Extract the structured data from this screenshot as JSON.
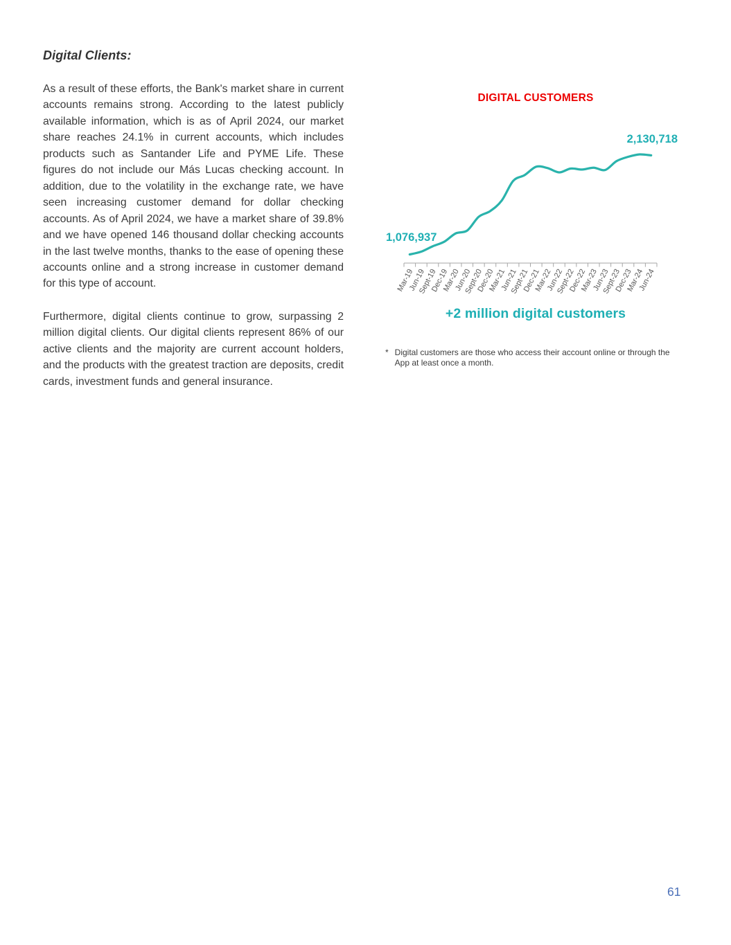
{
  "article": {
    "heading": "Digital Clients:",
    "paragraphs": [
      "As a result of these efforts, the Bank's market share in current accounts remains strong. According to the latest publicly available information, which is as of April 2024, our market share reaches 24.1% in current accounts, which includes products such as Santander Life and PYME Life. These figures do not include our Más Lucas checking account. In addition, due to the volatility in the exchange rate, we have seen increasing customer demand for dollar checking accounts. As of April 2024, we have a market share of 39.8% and we have opened 146 thousand dollar checking accounts in the last twelve months, thanks to the ease of opening these accounts online and a strong increase in customer demand for this type of account.",
      "Furthermore, digital clients continue to grow, surpassing 2 million digital clients. Our digital clients represent 86% of our active clients and the majority are current account holders, and the products with the greatest traction are deposits, credit cards, investment funds and general insurance."
    ]
  },
  "chart": {
    "title": "DIGITAL CUSTOMERS",
    "start_label": "1,076,937",
    "end_label": "2,130,718",
    "caption": "+2 million digital customers",
    "footnote_marker": "*",
    "footnote": "Digital customers are those who access their account online or through the App at least once a month.",
    "colors": {
      "title": "#EC0000",
      "line": "#2AB3AC",
      "accent_text": "#1FAFB4",
      "axis": "#A6A6A6",
      "tick_label": "#595959",
      "page_number": "#4A6FB8"
    }
  },
  "chart_data": {
    "type": "line",
    "title": "DIGITAL CUSTOMERS",
    "categories": [
      "Mar-19",
      "Jun-19",
      "Sept-19",
      "Dec-19",
      "Mar-20",
      "Jun-20",
      "Sept-20",
      "Dec-20",
      "Mar-21",
      "Jun-21",
      "Sept-21",
      "Dec-21",
      "Mar-22",
      "Jun-22",
      "Sept-22",
      "Dec-22",
      "Mar-23",
      "Jun-23",
      "Sept-23",
      "Dec-23",
      "Mar-24",
      "Jun-24"
    ],
    "series": [
      {
        "name": "Digital customers",
        "values": [
          1076937,
          1107000,
          1164000,
          1212000,
          1301000,
          1331000,
          1477000,
          1538000,
          1649000,
          1859000,
          1921000,
          2010000,
          1995000,
          1950000,
          1990000,
          1980000,
          2000000,
          1975000,
          2070000,
          2115000,
          2141000,
          2130718
        ]
      }
    ],
    "data_labels": [
      {
        "category": "Mar-19",
        "text": "1,076,937"
      },
      {
        "category": "Jun-24",
        "text": "2,130,718"
      }
    ],
    "xlabel": "",
    "ylabel": "",
    "ylim": [
      1000000,
      2200000
    ],
    "grid": false,
    "legend": false,
    "smoothed_line": true
  },
  "footer": {
    "page_number": "61"
  }
}
